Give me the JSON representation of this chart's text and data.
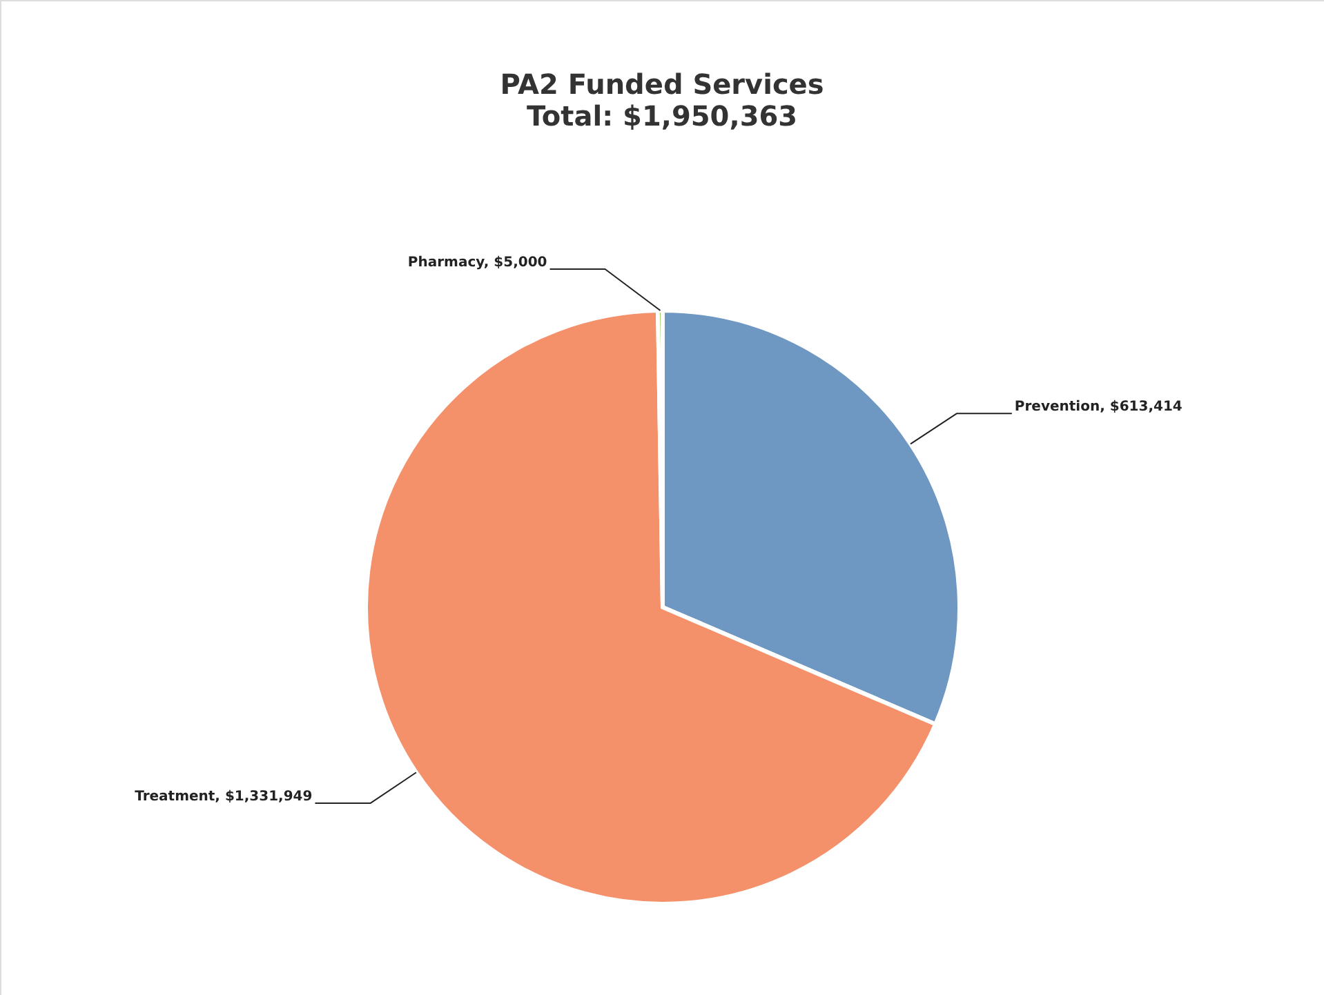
{
  "chart_data": {
    "type": "pie",
    "title": "PA2 Funded Services",
    "subtitle": "Total: $1,950,363",
    "categories": [
      "Prevention",
      "Treatment",
      "Pharmacy"
    ],
    "values": [
      613414,
      1331949,
      5000
    ],
    "value_labels": [
      "$613,414",
      "$1,331,949",
      "$5,000"
    ],
    "colors": [
      "#6e97c2",
      "#f4916a",
      "#8cc63f"
    ]
  }
}
